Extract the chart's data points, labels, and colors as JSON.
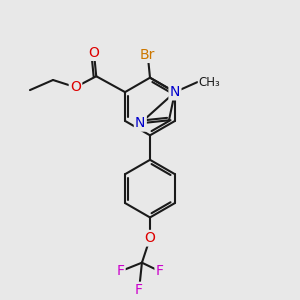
{
  "bg_color": "#e8e8e8",
  "bond_color": "#1a1a1a",
  "bond_lw": 1.5,
  "dbo": 0.1,
  "colors": {
    "C": "#1a1a1a",
    "O": "#dd0000",
    "N": "#0000cc",
    "Br": "#cc7700",
    "F": "#cc00cc"
  },
  "fs": 10,
  "sfs": 8.5
}
